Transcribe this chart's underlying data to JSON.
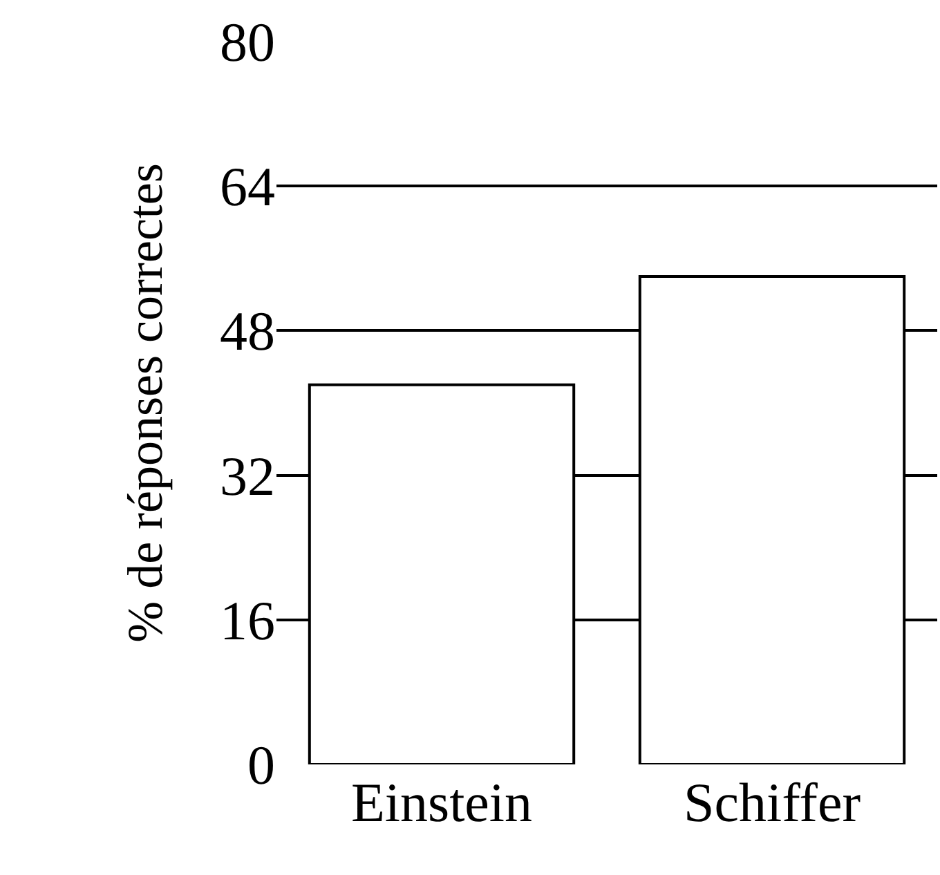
{
  "chart_data": {
    "type": "bar",
    "ylabel": "% de réponses correctes",
    "categories": [
      "Einstein",
      "Schiffer"
    ],
    "series": [
      {
        "color": "#ffffff",
        "values": [
          42,
          54
        ]
      }
    ],
    "ylim": [
      0,
      80
    ],
    "yticks": [
      0,
      16,
      32,
      48,
      64,
      80
    ],
    "grid": "y",
    "legend": false
  }
}
